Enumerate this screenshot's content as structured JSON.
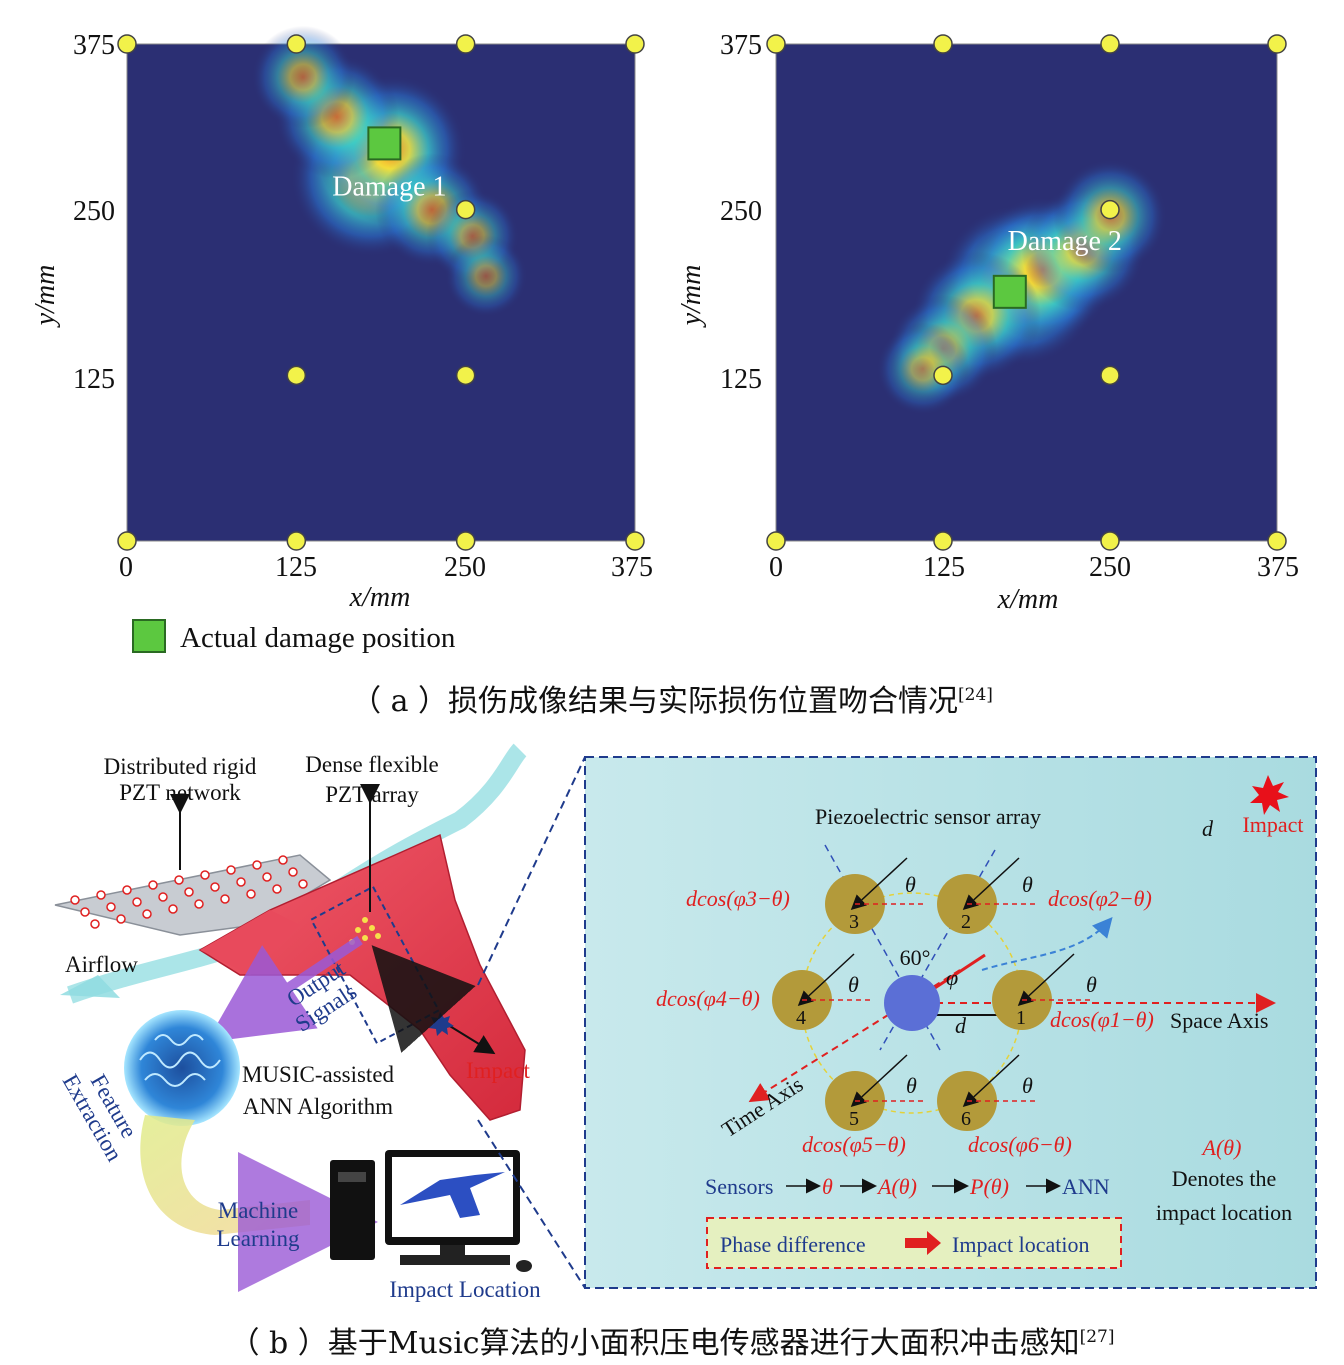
{
  "panel_a": {
    "plots": [
      {
        "damage_label": "Damage 1",
        "damage_position": [
          190,
          300
        ],
        "heat": [
          [
            180,
            275,
            1.0
          ],
          [
            195,
            295,
            0.9
          ],
          [
            155,
            320,
            0.65
          ],
          [
            225,
            250,
            0.55
          ],
          [
            130,
            350,
            0.45
          ],
          [
            255,
            230,
            0.35
          ],
          [
            265,
            200,
            0.25
          ]
        ],
        "sensors_bright": [
          [
            125,
            125
          ],
          [
            250,
            125
          ],
          [
            250,
            250
          ]
        ]
      },
      {
        "damage_label": "Damage 2",
        "damage_position": [
          175,
          188
        ],
        "heat": [
          [
            182,
            193,
            1.0
          ],
          [
            200,
            205,
            0.85
          ],
          [
            150,
            170,
            0.7
          ],
          [
            230,
            220,
            0.65
          ],
          [
            250,
            245,
            0.55
          ],
          [
            125,
            145,
            0.5
          ],
          [
            110,
            130,
            0.35
          ]
        ],
        "sensors_bright": [
          [
            125,
            125
          ],
          [
            250,
            125
          ],
          [
            250,
            250
          ]
        ]
      }
    ],
    "xlabel": "x/mm",
    "ylabel": "y/mm",
    "xticks": [
      "0",
      "125",
      "250",
      "375"
    ],
    "yticks": [
      "375",
      "250",
      "125"
    ],
    "legend": "Actual damage position",
    "caption": "（ a ）损伤成像结果与实际损伤位置吻合情况",
    "caption_ref": "[24]",
    "colors": {
      "background": "#2b2f73",
      "damage": "#5cc840",
      "sensor": "#f2f24a"
    }
  },
  "panel_b": {
    "left": {
      "distributed_label": [
        "Distributed rigid",
        "PZT network"
      ],
      "dense_label": [
        "Dense flexible",
        "PZT array"
      ],
      "airflow": "Airflow",
      "output_signals": [
        "Output",
        "Signals"
      ],
      "impact": "Impact",
      "music_label": [
        "MUSIC-assisted",
        "ANN Algorithm"
      ],
      "feature_extraction": [
        "Feature",
        "Extraction"
      ],
      "machine_learning": [
        "Machine",
        "Learning"
      ],
      "impact_location": "Impact Location"
    },
    "right": {
      "title": "Piezoelectric sensor array",
      "impact": "Impact",
      "d_label": "d",
      "sensors": [
        "1",
        "2",
        "3",
        "4",
        "5",
        "6"
      ],
      "dcos_labels": [
        "dcos(φ1−θ)",
        "dcos(φ2−θ)",
        "dcos(φ3−θ)",
        "dcos(φ4−θ)",
        "dcos(φ5−θ)",
        "dcos(φ6−θ)"
      ],
      "theta": "θ",
      "angle_60": "60°",
      "phi": "φ",
      "space_axis": "Space Axis",
      "time_axis": "Time Axis",
      "flow": [
        "Sensors",
        "θ",
        "A(θ)",
        "P(θ)",
        "ANN"
      ],
      "a_theta": "A(θ)",
      "denotes": [
        "Denotes the",
        "impact location"
      ],
      "phase_difference": "Phase difference",
      "impact_location": "Impact location"
    },
    "caption": "（ b ）基于Music算法的小面积压电传感器进行大面积冲击感知",
    "caption_ref": "[27]"
  }
}
